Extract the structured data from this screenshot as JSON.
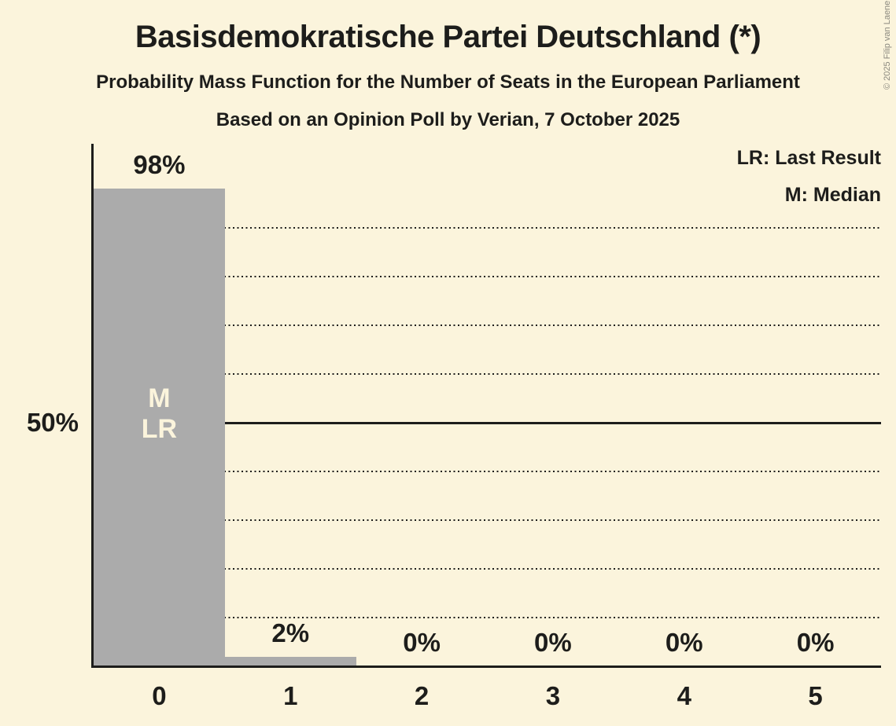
{
  "header": {
    "title": "Basisdemokratische Partei Deutschland (*)",
    "subtitle": "Probability Mass Function for the Number of Seats in the European Parliament",
    "subsubtitle": "Based on an Opinion Poll by Verian, 7 October 2025"
  },
  "copyright": "© 2025 Filip van Laenen",
  "legend": {
    "items": [
      "LR: Last Result",
      "M: Median"
    ]
  },
  "chart_data": {
    "type": "bar",
    "title": "Basisdemokratische Partei Deutschland (*)",
    "subtitle": "Probability Mass Function for the Number of Seats in the European Parliament",
    "source_line": "Based on an Opinion Poll by Verian, 7 October 2025",
    "categories": [
      "0",
      "1",
      "2",
      "3",
      "4",
      "5"
    ],
    "values": [
      98,
      2,
      0,
      0,
      0,
      0
    ],
    "bar_labels": [
      "98%",
      "2%",
      "0%",
      "0%",
      "0%",
      "0%"
    ],
    "xlabel": "",
    "ylabel": "",
    "ylim": [
      0,
      100
    ],
    "ytick_label": "50%",
    "ytick_value": 50,
    "solid_line_pct": 50,
    "gridlines_pct": [
      10,
      20,
      30,
      40,
      60,
      70,
      80,
      90
    ],
    "grid": "dotted horizontal",
    "legend_position": "top-right",
    "median_seats": 0,
    "last_result_seats": 0,
    "annotation": {
      "slot": 0,
      "lines": [
        "M",
        "LR"
      ]
    },
    "colors": {
      "background": "#FBF4DC",
      "bar": "#ABABAB",
      "text": "#1D1D1B",
      "annotation_text": "#FBF4DC",
      "copyright_text": "#8B897F"
    }
  }
}
